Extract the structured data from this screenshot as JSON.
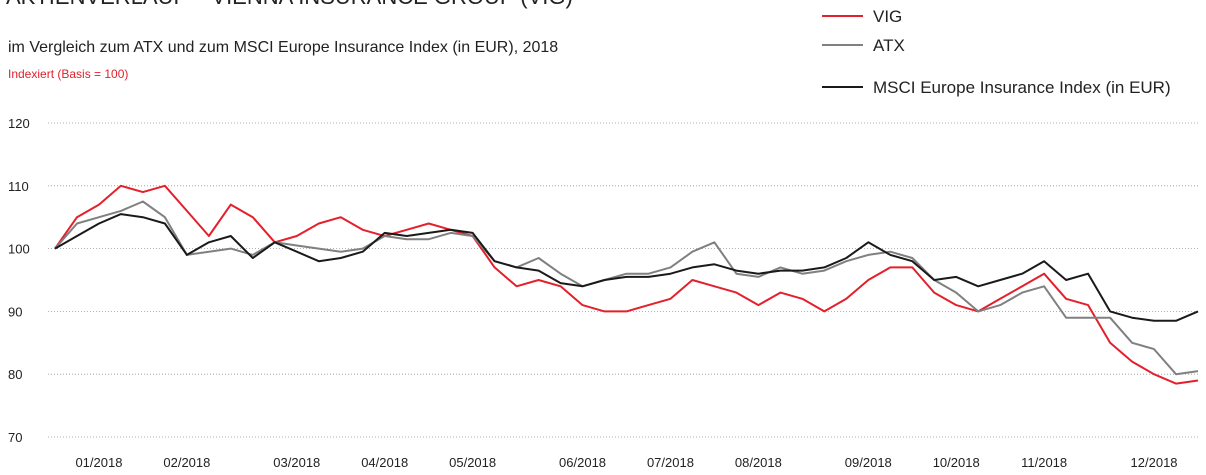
{
  "chart_data": {
    "type": "line",
    "title": "AKTIENVERLAUF – VIENNA INSURANCE GROUP (VIG)",
    "subtitle": "im Vergleich zum ATX und zum MSCI Europe Insurance Index (in EUR), 2018",
    "note": "Indexiert (Basis = 100)",
    "categories": [
      null,
      null,
      "01/2018",
      null,
      null,
      null,
      "02/2018",
      null,
      null,
      null,
      null,
      "03/2018",
      null,
      null,
      null,
      "04/2018",
      null,
      null,
      null,
      "05/2018",
      null,
      null,
      null,
      null,
      "06/2018",
      null,
      null,
      null,
      "07/2018",
      null,
      null,
      null,
      "08/2018",
      null,
      null,
      null,
      null,
      "09/2018",
      null,
      null,
      null,
      "10/2018",
      null,
      null,
      null,
      "11/2018",
      null,
      null,
      null,
      null,
      "12/2018",
      null,
      null
    ],
    "series": [
      {
        "name": "VIG",
        "color": "#e3202b",
        "values": [
          100,
          105,
          107,
          110,
          109,
          110,
          106,
          102,
          107,
          105,
          101,
          102,
          104,
          105,
          103,
          102,
          103,
          104,
          103,
          102,
          97,
          94,
          95,
          94,
          91,
          90,
          90,
          91,
          92,
          95,
          94,
          93,
          91,
          93,
          92,
          90,
          92,
          95,
          97,
          97,
          93,
          91,
          90,
          92,
          94,
          96,
          92,
          91,
          85,
          82,
          80,
          78.5,
          79
        ]
      },
      {
        "name": "ATX",
        "color": "#808080",
        "values": [
          100,
          104,
          105,
          106,
          107.5,
          105,
          99,
          99.5,
          100,
          99,
          101,
          100.5,
          100,
          99.5,
          100,
          102,
          101.5,
          101.5,
          102.5,
          102,
          98,
          97,
          98.5,
          96,
          94,
          95,
          96,
          96,
          97,
          99.5,
          101,
          96,
          95.5,
          97,
          96,
          96.5,
          98,
          99,
          99.5,
          98.5,
          95,
          93,
          90,
          91,
          93,
          94,
          89,
          89,
          89,
          85,
          84,
          80,
          80.5
        ]
      },
      {
        "name": "MSCI Europe Insurance Index (in EUR)",
        "color": "#1a1a1a",
        "values": [
          100,
          102,
          104,
          105.5,
          105,
          104,
          99,
          101,
          102,
          98.5,
          101,
          99.5,
          98,
          98.5,
          99.5,
          102.5,
          102,
          102.5,
          103,
          102.5,
          98,
          97,
          96.5,
          94.5,
          94,
          95,
          95.5,
          95.5,
          96,
          97,
          97.5,
          96.5,
          96,
          96.5,
          96.5,
          97,
          98.5,
          101,
          99,
          98,
          95,
          95.5,
          94,
          95,
          96,
          98,
          95,
          96,
          90,
          89,
          88.5,
          88.5,
          90
        ]
      }
    ],
    "ylim": [
      70,
      120
    ],
    "yticks": [
      70,
      80,
      90,
      100,
      110,
      120
    ],
    "grid": true,
    "legend": "top-right"
  }
}
